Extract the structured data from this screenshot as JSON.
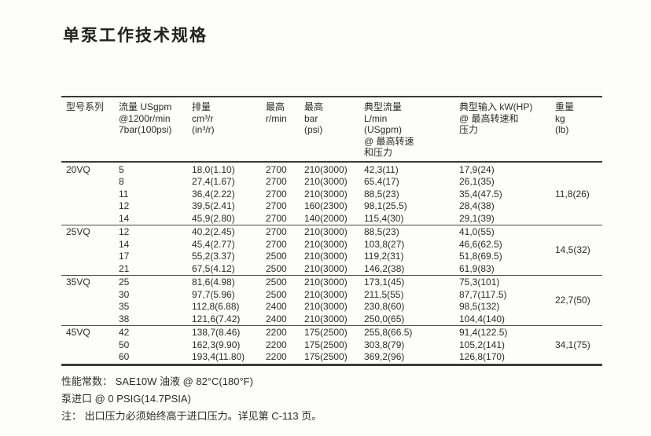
{
  "page": {
    "title": "单泵工作技术规格"
  },
  "table": {
    "headers": {
      "model": "型号系列",
      "flow": "流量 USgpm\n@1200r/min\n7bar(100psi)",
      "displacement": "排量\ncm³/r\n(in³/r)",
      "max_speed": "最高\nr/min",
      "max_pressure": "最高\nbar\n(psi)",
      "typical_flow": "典型流量\nL/min\n(USgpm)\n@ 最高转速\n和压力",
      "typical_input": "典型输入 kW(HP)\n@ 最高转速和\n压力",
      "weight": "重量\nkg\n(lb)"
    },
    "sections": [
      {
        "model": "20VQ",
        "weight": "11,8(26)",
        "rows": [
          {
            "flow": "5",
            "displacement": "18,0(1.10)",
            "speed": "2700",
            "pressure": "210(3000)",
            "typical_flow": "42,3(11)",
            "input": "17,9(24)"
          },
          {
            "flow": "8",
            "displacement": "27,4(1.67)",
            "speed": "2700",
            "pressure": "210(3000)",
            "typical_flow": "65,4(17)",
            "input": "26,1(35)"
          },
          {
            "flow": "11",
            "displacement": "36,4(2.22)",
            "speed": "2700",
            "pressure": "210(3000)",
            "typical_flow": "88,5(23)",
            "input": "35,4(47.5)"
          },
          {
            "flow": "12",
            "displacement": "39,5(2.41)",
            "speed": "2700",
            "pressure": "160(2300)",
            "typical_flow": "98,1(25.5)",
            "input": "28,4(38)"
          },
          {
            "flow": "14",
            "displacement": "45,9(2.80)",
            "speed": "2700",
            "pressure": "140(2000)",
            "typical_flow": "115,4(30)",
            "input": "29,1(39)"
          }
        ]
      },
      {
        "model": "25VQ",
        "weight": "14,5(32)",
        "rows": [
          {
            "flow": "12",
            "displacement": "40,2(2.45)",
            "speed": "2700",
            "pressure": "210(3000)",
            "typical_flow": "88,5(23)",
            "input": "41,0(55)"
          },
          {
            "flow": "14",
            "displacement": "45,4(2.77)",
            "speed": "2700",
            "pressure": "210(3000)",
            "typical_flow": "103,8(27)",
            "input": "46,6(62.5)"
          },
          {
            "flow": "17",
            "displacement": "55,2(3.37)",
            "speed": "2500",
            "pressure": "210(3000)",
            "typical_flow": "119,2(31)",
            "input": "51,8(69.5)"
          },
          {
            "flow": "21",
            "displacement": "67,5(4.12)",
            "speed": "2500",
            "pressure": "210(3000)",
            "typical_flow": "146,2(38)",
            "input": "61,9(83)"
          }
        ]
      },
      {
        "model": "35VQ",
        "weight": "22,7(50)",
        "rows": [
          {
            "flow": "25",
            "displacement": "81,6(4.98)",
            "speed": "2500",
            "pressure": "210(3000)",
            "typical_flow": "173,1(45)",
            "input": "75,3(101)"
          },
          {
            "flow": "30",
            "displacement": "97,7(5.96)",
            "speed": "2500",
            "pressure": "210(3000)",
            "typical_flow": "211,5(55)",
            "input": "87,7(117.5)"
          },
          {
            "flow": "35",
            "displacement": "112,8(6.88)",
            "speed": "2400",
            "pressure": "210(3000)",
            "typical_flow": "230,8(60)",
            "input": "98,5(132)"
          },
          {
            "flow": "38",
            "displacement": "121,6(7.42)",
            "speed": "2400",
            "pressure": "210(3000)",
            "typical_flow": "250,0(65)",
            "input": "104,4(140)"
          }
        ]
      },
      {
        "model": "45VQ",
        "weight": "34,1(75)",
        "rows": [
          {
            "flow": "42",
            "displacement": "138,7(8.46)",
            "speed": "2200",
            "pressure": "175(2500)",
            "typical_flow": "255,8(66.5)",
            "input": "91,4(122.5)"
          },
          {
            "flow": "50",
            "displacement": "162,3(9.90)",
            "speed": "2200",
            "pressure": "175(2500)",
            "typical_flow": "303,8(79)",
            "input": "105,2(141)"
          },
          {
            "flow": "60",
            "displacement": "193,4(11.80)",
            "speed": "2200",
            "pressure": "175(2500)",
            "typical_flow": "369,2(96)",
            "input": "126,8(170)"
          }
        ]
      }
    ]
  },
  "notes": {
    "performance": "性能常数： SAE10W 油液 @ 82°C(180°F)",
    "inlet": "泵进口 @ 0 PSIG(14.7PSIA)",
    "outlet": "注： 出口压力必须始终高于进口压力。详见第 C-113 页。"
  },
  "colors": {
    "text": "#2b2b2b",
    "rule": "#3b3b3b",
    "background": "#fdfdfc"
  }
}
